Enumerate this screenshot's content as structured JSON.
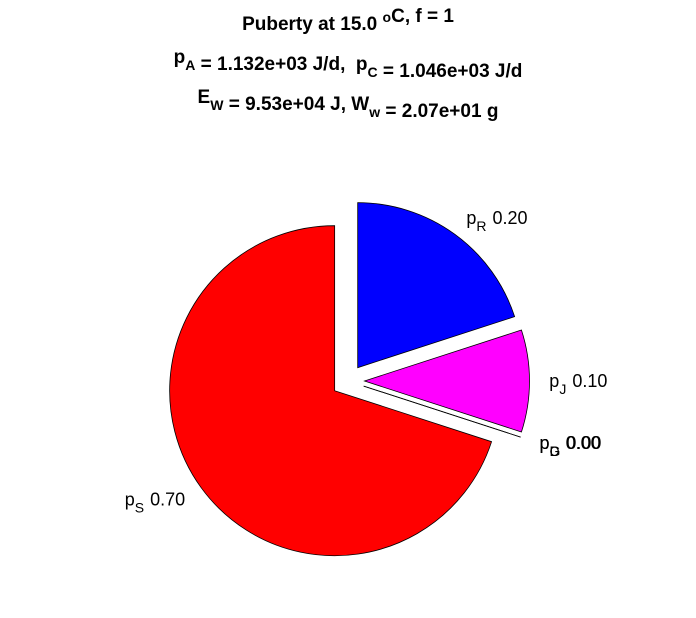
{
  "chart_data": {
    "type": "pie",
    "title": [
      [
        {
          "text": "Puberty at 15.0 "
        },
        {
          "sup": "o"
        },
        {
          "text": "C, f = 1"
        }
      ],
      [
        {
          "text": "p"
        },
        {
          "sub": "A"
        },
        {
          "text": " = 1.132e+03 J/d,  p"
        },
        {
          "sub": "C"
        },
        {
          "text": " = 1.046e+03 J/d"
        }
      ],
      [
        {
          "text": "E"
        },
        {
          "sub": "W"
        },
        {
          "text": " = 9.53e+04 J, W"
        },
        {
          "sub": "w"
        },
        {
          "text": " = 2.07e+01 g"
        }
      ]
    ],
    "label_prefix": "p",
    "categories": [
      "R",
      "J",
      "D",
      "G",
      "S"
    ],
    "values": [
      0.2,
      0.1,
      0,
      0,
      0.7
    ],
    "value_labels": [
      "0.20",
      "0.10",
      "0.00",
      "0.00",
      "0.70"
    ],
    "colors": [
      "#0000ff",
      "#ff00ff",
      "#00ffff",
      "#00ff00",
      "#ff0000"
    ],
    "explode": true
  }
}
